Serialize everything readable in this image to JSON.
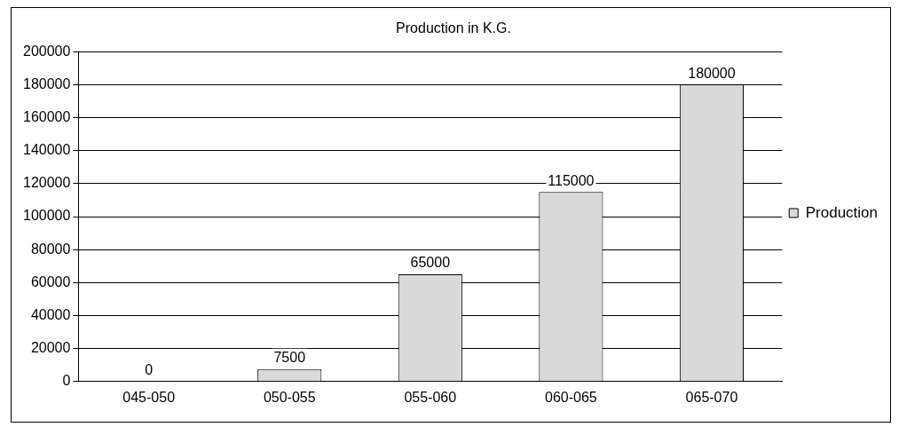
{
  "chart_data": {
    "type": "bar",
    "title": "Production in K.G.",
    "categories": [
      "045-050",
      "050-055",
      "055-060",
      "060-065",
      "065-070"
    ],
    "series": [
      {
        "name": "Production",
        "color": "#d9d9d9",
        "values": [
          0,
          7500,
          65000,
          115000,
          180000
        ]
      }
    ],
    "ylim": [
      0,
      200000
    ],
    "yticks": [
      0,
      20000,
      40000,
      60000,
      80000,
      100000,
      120000,
      140000,
      160000,
      180000,
      200000
    ],
    "grid": "y",
    "legend": "right",
    "data_labels": true
  }
}
